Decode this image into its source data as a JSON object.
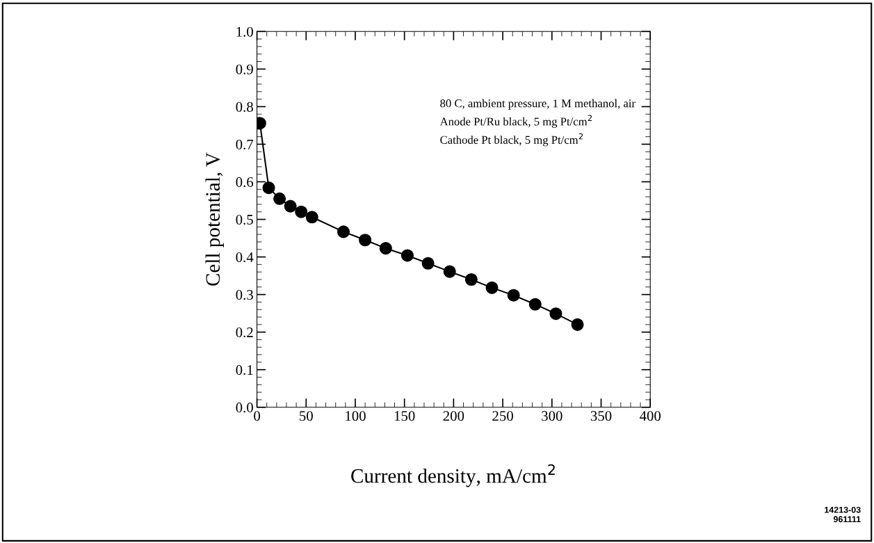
{
  "chart_data": {
    "type": "line",
    "xlabel": "Current density, mA/cm$^{2}$",
    "ylabel": "Cell potential, V",
    "x": [
      3,
      12,
      23,
      34,
      45,
      56,
      88,
      110,
      131,
      153,
      174,
      196,
      218,
      239,
      261,
      283,
      304,
      326
    ],
    "series": [
      {
        "color": "#000000",
        "values": [
          0.756,
          0.584,
          0.555,
          0.535,
          0.52,
          0.506,
          0.467,
          0.445,
          0.423,
          0.404,
          0.383,
          0.361,
          0.34,
          0.318,
          0.298,
          0.274,
          0.249,
          0.22
        ]
      }
    ],
    "xlim": [
      0,
      400
    ],
    "xticks": [
      0,
      50,
      100,
      150,
      200,
      250,
      300,
      350,
      400
    ],
    "ylim": [
      0,
      1
    ],
    "yticks": [
      {
        "value": 0,
        "label": "0.0"
      },
      {
        "value": 0.1,
        "label": "0.1"
      },
      {
        "value": 0.2,
        "label": "0.2"
      },
      {
        "value": 0.3,
        "label": "0.3"
      },
      {
        "value": 0.4,
        "label": "0.4"
      },
      {
        "value": 0.5,
        "label": "0.5"
      },
      {
        "value": 0.6,
        "label": "0.6"
      },
      {
        "value": 0.7,
        "label": "0.7"
      },
      {
        "value": 0.8,
        "label": "0.8"
      },
      {
        "value": 0.9,
        "label": "0.9"
      },
      {
        "value": 1,
        "label": "1.0"
      }
    ],
    "marker": "circle",
    "line_style": "solid",
    "grid": false,
    "legend": false,
    "annotations": [
      "80 C, ambient pressure, 1 M methanol, air\nAnode Pt/Ru black, 5 mg Pt/cm$^{2}$\nCathode Pt black, 5 mg Pt/cm$^{2}$",
      "14213-03\n961111"
    ]
  }
}
